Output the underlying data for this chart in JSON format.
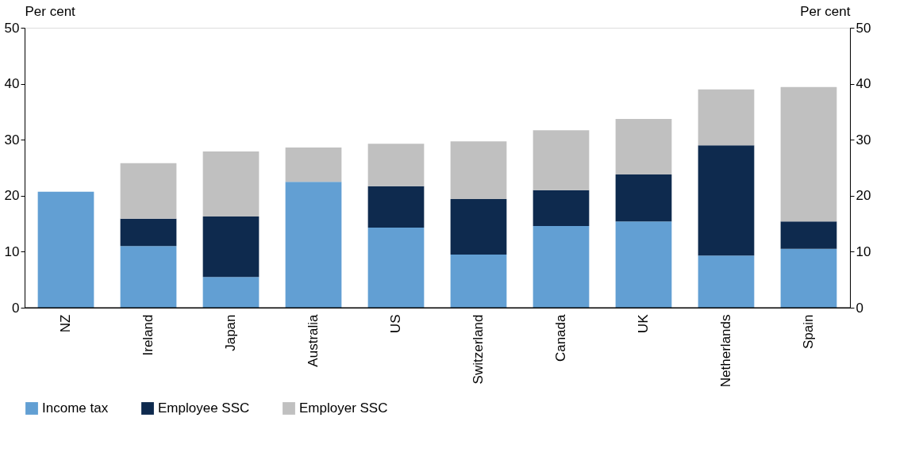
{
  "chart_data": {
    "type": "bar",
    "stacked": true,
    "categories": [
      "NZ",
      "Ireland",
      "Japan",
      "Australia",
      "US",
      "Switzerland",
      "Canada",
      "UK",
      "Netherlands",
      "Spain"
    ],
    "series": [
      {
        "name": "Income tax",
        "color": "#629fd3",
        "values": [
          20.7,
          11.0,
          5.5,
          22.5,
          14.3,
          9.5,
          14.6,
          15.4,
          9.3,
          10.5
        ]
      },
      {
        "name": "Employee SSC",
        "color": "#0e2a4e",
        "values": [
          0,
          4.9,
          10.8,
          0,
          7.4,
          9.9,
          6.4,
          8.4,
          19.7,
          4.9
        ]
      },
      {
        "name": "Employer SSC",
        "color": "#c0c0c0",
        "values": [
          0,
          9.9,
          11.6,
          6.1,
          7.6,
          10.3,
          10.7,
          9.9,
          10.0,
          24.0
        ]
      }
    ],
    "ylabel": "Per cent",
    "y2label": "Per cent",
    "ylim": [
      0,
      50
    ],
    "yticks": [
      0,
      10,
      20,
      30,
      40,
      50
    ],
    "y2lim": [
      0,
      50
    ],
    "y2ticks": [
      0,
      10,
      20,
      30,
      40,
      50
    ],
    "grid": false,
    "legend": "bottom"
  }
}
